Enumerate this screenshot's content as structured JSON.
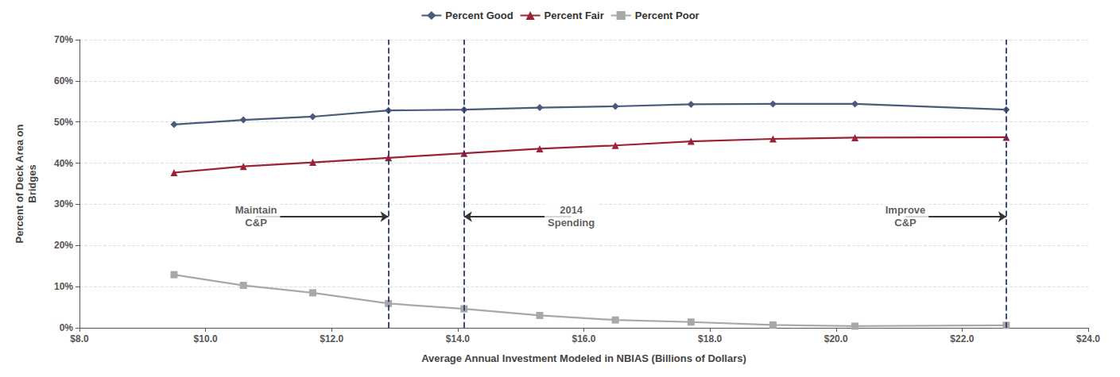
{
  "chart_data": {
    "type": "line",
    "xlabel": "Average Annual Investment Modeled in NBIAS (Billions of Dollars)",
    "ylabel": "Percent of Deck Area on\nBridges",
    "xlim": [
      8.0,
      24.0
    ],
    "ylim": [
      0.0,
      0.7
    ],
    "xticks": [
      {
        "value": 8.0,
        "label": "$8.0"
      },
      {
        "value": 10.0,
        "label": "$10.0"
      },
      {
        "value": 12.0,
        "label": "$12.0"
      },
      {
        "value": 14.0,
        "label": "$14.0"
      },
      {
        "value": 16.0,
        "label": "$16.0"
      },
      {
        "value": 18.0,
        "label": "$18.0"
      },
      {
        "value": 20.0,
        "label": "$20.0"
      },
      {
        "value": 22.0,
        "label": "$22.0"
      },
      {
        "value": 24.0,
        "label": "$24.0"
      }
    ],
    "yticks": [
      {
        "value": 0.0,
        "label": "0%"
      },
      {
        "value": 0.1,
        "label": "10%"
      },
      {
        "value": 0.2,
        "label": "20%"
      },
      {
        "value": 0.3,
        "label": "30%"
      },
      {
        "value": 0.4,
        "label": "40%"
      },
      {
        "value": 0.5,
        "label": "50%"
      },
      {
        "value": 0.6,
        "label": "60%"
      },
      {
        "value": 0.7,
        "label": "70%"
      }
    ],
    "grid": true,
    "legend": "top",
    "series": [
      {
        "name": "Percent Good",
        "color": "#4A5A7A",
        "marker": "diamond",
        "x": [
          9.5,
          10.6,
          11.7,
          12.9,
          14.1,
          15.3,
          16.5,
          17.7,
          19.0,
          20.3,
          22.7
        ],
        "values": [
          0.494,
          0.505,
          0.513,
          0.528,
          0.53,
          0.535,
          0.538,
          0.543,
          0.544,
          0.544,
          0.53
        ]
      },
      {
        "name": "Percent Fair",
        "color": "#9B2335",
        "marker": "triangle",
        "x": [
          9.5,
          10.6,
          11.7,
          12.9,
          14.1,
          15.3,
          16.5,
          17.7,
          19.0,
          20.3,
          22.7
        ],
        "values": [
          0.377,
          0.392,
          0.402,
          0.413,
          0.424,
          0.435,
          0.443,
          0.453,
          0.459,
          0.462,
          0.463
        ]
      },
      {
        "name": "Percent Poor",
        "color": "#A8A8A8",
        "marker": "square",
        "x": [
          9.5,
          10.6,
          11.7,
          12.9,
          14.1,
          15.3,
          16.5,
          17.7,
          19.0,
          20.3,
          22.7
        ],
        "values": [
          0.129,
          0.103,
          0.085,
          0.059,
          0.046,
          0.03,
          0.019,
          0.014,
          0.007,
          0.004,
          0.006
        ]
      }
    ],
    "vlines": {
      "x": [
        12.9,
        14.1,
        22.7
      ],
      "color": "#2B3A6B",
      "line_style": "dashed"
    },
    "annotations": [
      {
        "text": "Maintain\nC&P",
        "x": 10.8,
        "y": 0.27,
        "arrow_to": [
          12.9,
          0.27
        ]
      },
      {
        "text": "2014\nSpending",
        "x": 15.8,
        "y": 0.27,
        "arrow_to": [
          14.1,
          0.27
        ]
      },
      {
        "text": "Improve\nC&P",
        "x": 21.1,
        "y": 0.27,
        "arrow_to": [
          22.7,
          0.27
        ]
      }
    ]
  }
}
